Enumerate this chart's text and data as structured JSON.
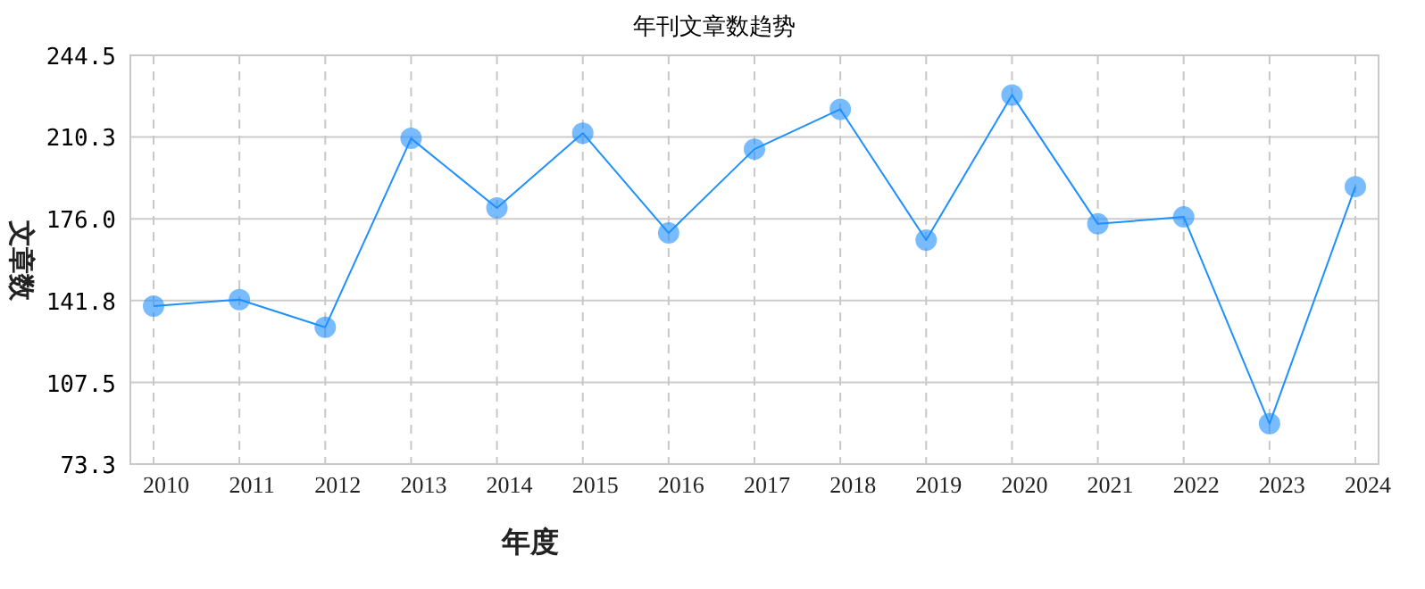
{
  "chart_data": {
    "type": "line",
    "title": "年刊文章数趋势",
    "xlabel": "年度",
    "ylabel": "文章数",
    "categories": [
      "2010",
      "2011",
      "2012",
      "2013",
      "2014",
      "2015",
      "2016",
      "2017",
      "2018",
      "2019",
      "2020",
      "2021",
      "2022",
      "2023",
      "2024"
    ],
    "series": [
      {
        "color": "#1e90ff",
        "values": [
          139.5,
          142.2,
          130.6,
          209.7,
          180.6,
          211.9,
          170.1,
          205.2,
          221.9,
          167.1,
          227.9,
          173.9,
          176.8,
          90.2,
          189.5
        ]
      }
    ],
    "ylim": [
      73.3,
      244.5
    ],
    "yticks": [
      73.3,
      107.5,
      141.8,
      {
        "value": 176,
        "label": "176.0"
      },
      210.3,
      244.5
    ],
    "grid": true,
    "marker": "circle",
    "line_style": "solid"
  }
}
